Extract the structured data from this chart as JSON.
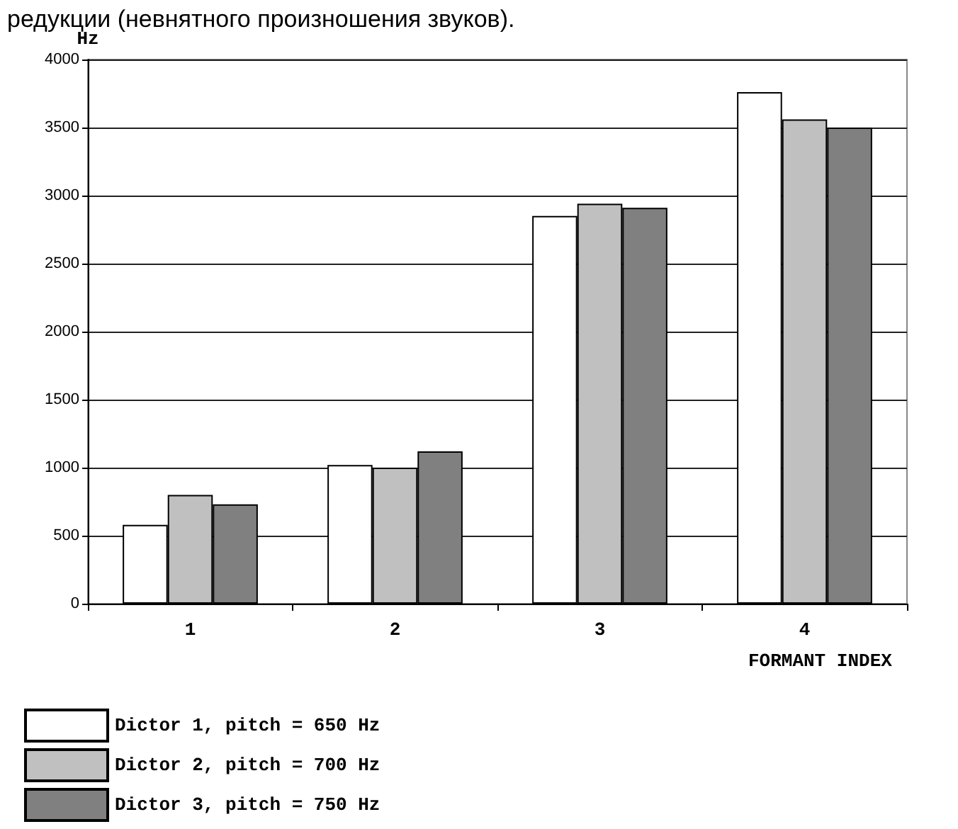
{
  "chart_data": {
    "type": "bar",
    "title": "редукции (невнятного произношения звуков).",
    "xlabel": "FORMANT INDEX",
    "ylabel": "Hz",
    "categories": [
      "1",
      "2",
      "3",
      "4"
    ],
    "series": [
      {
        "name": "Dictor 1, pitch = 650 Hz",
        "color": "#ffffff",
        "values": [
          580,
          1020,
          2850,
          3760
        ]
      },
      {
        "name": "Dictor 2, pitch = 700 Hz",
        "color": "#c0c0c0",
        "values": [
          800,
          1000,
          2940,
          3560
        ]
      },
      {
        "name": "Dictor 3, pitch = 750 Hz",
        "color": "#808080",
        "values": [
          730,
          1120,
          2910,
          3500
        ]
      }
    ],
    "ylim": [
      0,
      4000
    ],
    "yticks": [
      0,
      500,
      1000,
      1500,
      2000,
      2500,
      3000,
      3500,
      4000
    ],
    "grid": "y",
    "legend": "bottom left"
  }
}
